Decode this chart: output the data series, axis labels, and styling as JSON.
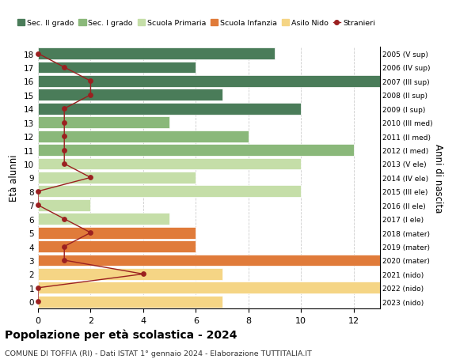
{
  "ages": [
    18,
    17,
    16,
    15,
    14,
    13,
    12,
    11,
    10,
    9,
    8,
    7,
    6,
    5,
    4,
    3,
    2,
    1,
    0
  ],
  "right_labels": [
    "2005 (V sup)",
    "2006 (IV sup)",
    "2007 (III sup)",
    "2008 (II sup)",
    "2009 (I sup)",
    "2010 (III med)",
    "2011 (II med)",
    "2012 (I med)",
    "2013 (V ele)",
    "2014 (IV ele)",
    "2015 (III ele)",
    "2016 (II ele)",
    "2017 (I ele)",
    "2018 (mater)",
    "2019 (mater)",
    "2020 (mater)",
    "2021 (nido)",
    "2022 (nido)",
    "2023 (nido)"
  ],
  "bar_values": [
    9,
    6,
    13,
    7,
    10,
    5,
    8,
    12,
    10,
    6,
    10,
    2,
    5,
    6,
    6,
    13,
    7,
    13,
    7
  ],
  "bar_colors": [
    "#4a7c59",
    "#4a7c59",
    "#4a7c59",
    "#4a7c59",
    "#4a7c59",
    "#8ab87a",
    "#8ab87a",
    "#8ab87a",
    "#c5dea8",
    "#c5dea8",
    "#c5dea8",
    "#c5dea8",
    "#c5dea8",
    "#e07b3a",
    "#e07b3a",
    "#e07b3a",
    "#f5d585",
    "#f5d585",
    "#f5d585"
  ],
  "stranieri_x": [
    0,
    1,
    2,
    2,
    1,
    1,
    1,
    1,
    1,
    2,
    0,
    0,
    1,
    2,
    1,
    1,
    4,
    0,
    0
  ],
  "title": "Popolazione per età scolastica - 2024",
  "subtitle": "COMUNE DI TOFFIA (RI) - Dati ISTAT 1° gennaio 2024 - Elaborazione TUTTITALIA.IT",
  "ylabel_left": "Età alunni",
  "ylabel_right": "Anni di nascita",
  "xlim": [
    0,
    13
  ],
  "xticks": [
    0,
    2,
    4,
    6,
    8,
    10,
    12
  ],
  "legend_labels": [
    "Sec. II grado",
    "Sec. I grado",
    "Scuola Primaria",
    "Scuola Infanzia",
    "Asilo Nido",
    "Stranieri"
  ],
  "legend_colors": [
    "#4a7c59",
    "#8ab87a",
    "#c5dea8",
    "#e07b3a",
    "#f5d585",
    "#b22222"
  ],
  "color_stranieri": "#9b2020",
  "bg_color": "#ffffff",
  "grid_color": "#cccccc"
}
